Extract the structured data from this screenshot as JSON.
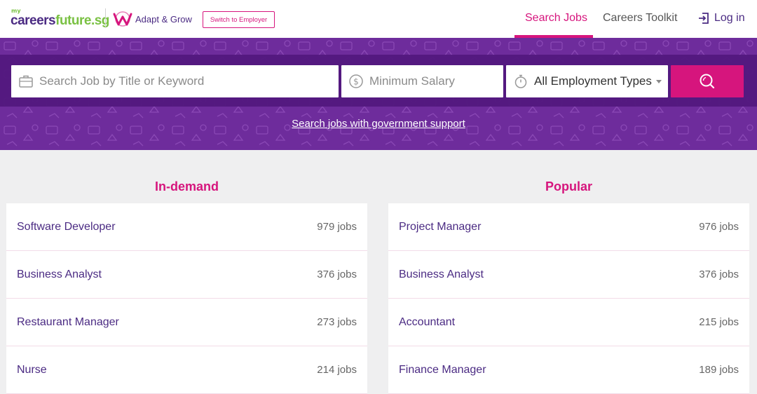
{
  "header": {
    "logo_prefix": "my",
    "logo_part1": "careers",
    "logo_part2": "future.sg",
    "adapt_label": "Adapt & Grow",
    "switch_employer_label": "Switch to Employer",
    "nav": {
      "search_jobs": "Search Jobs",
      "careers_toolkit": "Careers Toolkit",
      "login": "Log in"
    }
  },
  "search": {
    "keyword_placeholder": "Search Job by Title or Keyword",
    "salary_placeholder": "Minimum Salary",
    "employment_type_value": "All Employment Types",
    "gov_support_link": "Search jobs with government support"
  },
  "in_demand": {
    "title": "In-demand",
    "items": [
      {
        "name": "Software Developer",
        "count": "979 jobs"
      },
      {
        "name": "Business Analyst",
        "count": "376 jobs"
      },
      {
        "name": "Restaurant Manager",
        "count": "273 jobs"
      },
      {
        "name": "Nurse",
        "count": "214 jobs"
      }
    ]
  },
  "popular": {
    "title": "Popular",
    "items": [
      {
        "name": "Project Manager",
        "count": "976 jobs"
      },
      {
        "name": "Business Analyst",
        "count": "376 jobs"
      },
      {
        "name": "Accountant",
        "count": "215 jobs"
      },
      {
        "name": "Finance Manager",
        "count": "189 jobs"
      }
    ]
  },
  "colors": {
    "brand_purple": "#4b2b83",
    "hero_purple": "#6e2c9c",
    "accent_magenta": "#d6157d",
    "logo_green": "#7ac143"
  },
  "icons": {
    "keyword": "briefcase-icon",
    "salary": "dollar-icon",
    "type": "stopwatch-icon",
    "search": "search-icon",
    "login": "login-icon"
  }
}
